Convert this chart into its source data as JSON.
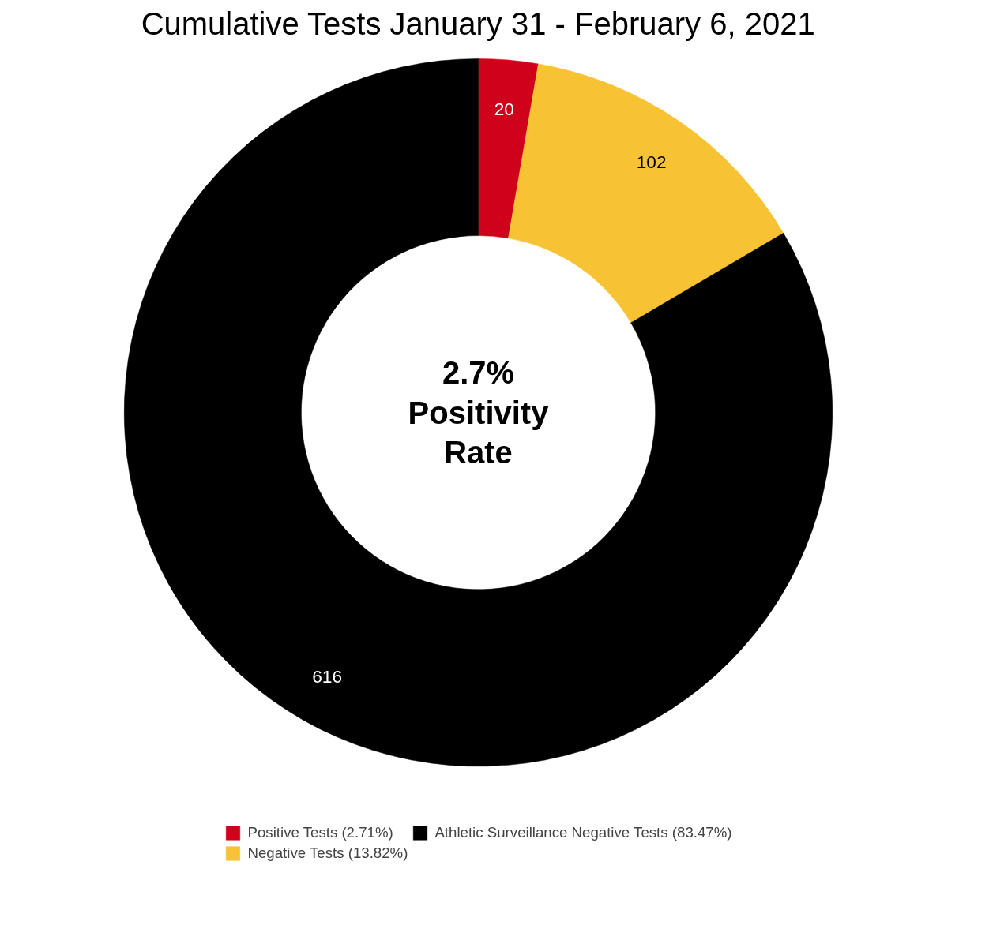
{
  "chart_data": {
    "type": "donut",
    "title": "Cumulative Tests January 31 - February 6, 2021",
    "categories": [
      "Positive Tests (2.71%)",
      "Negative Tests (13.82%)",
      "Athletic Surveillance Negative Tests (83.47%)"
    ],
    "values": [
      20,
      102,
      616
    ],
    "colors": [
      "#d0021b",
      "#f8c235",
      "#000000"
    ],
    "data_labels": true,
    "legend": "bottom",
    "annotations": [
      "2.7% Positivity Rate"
    ]
  }
}
